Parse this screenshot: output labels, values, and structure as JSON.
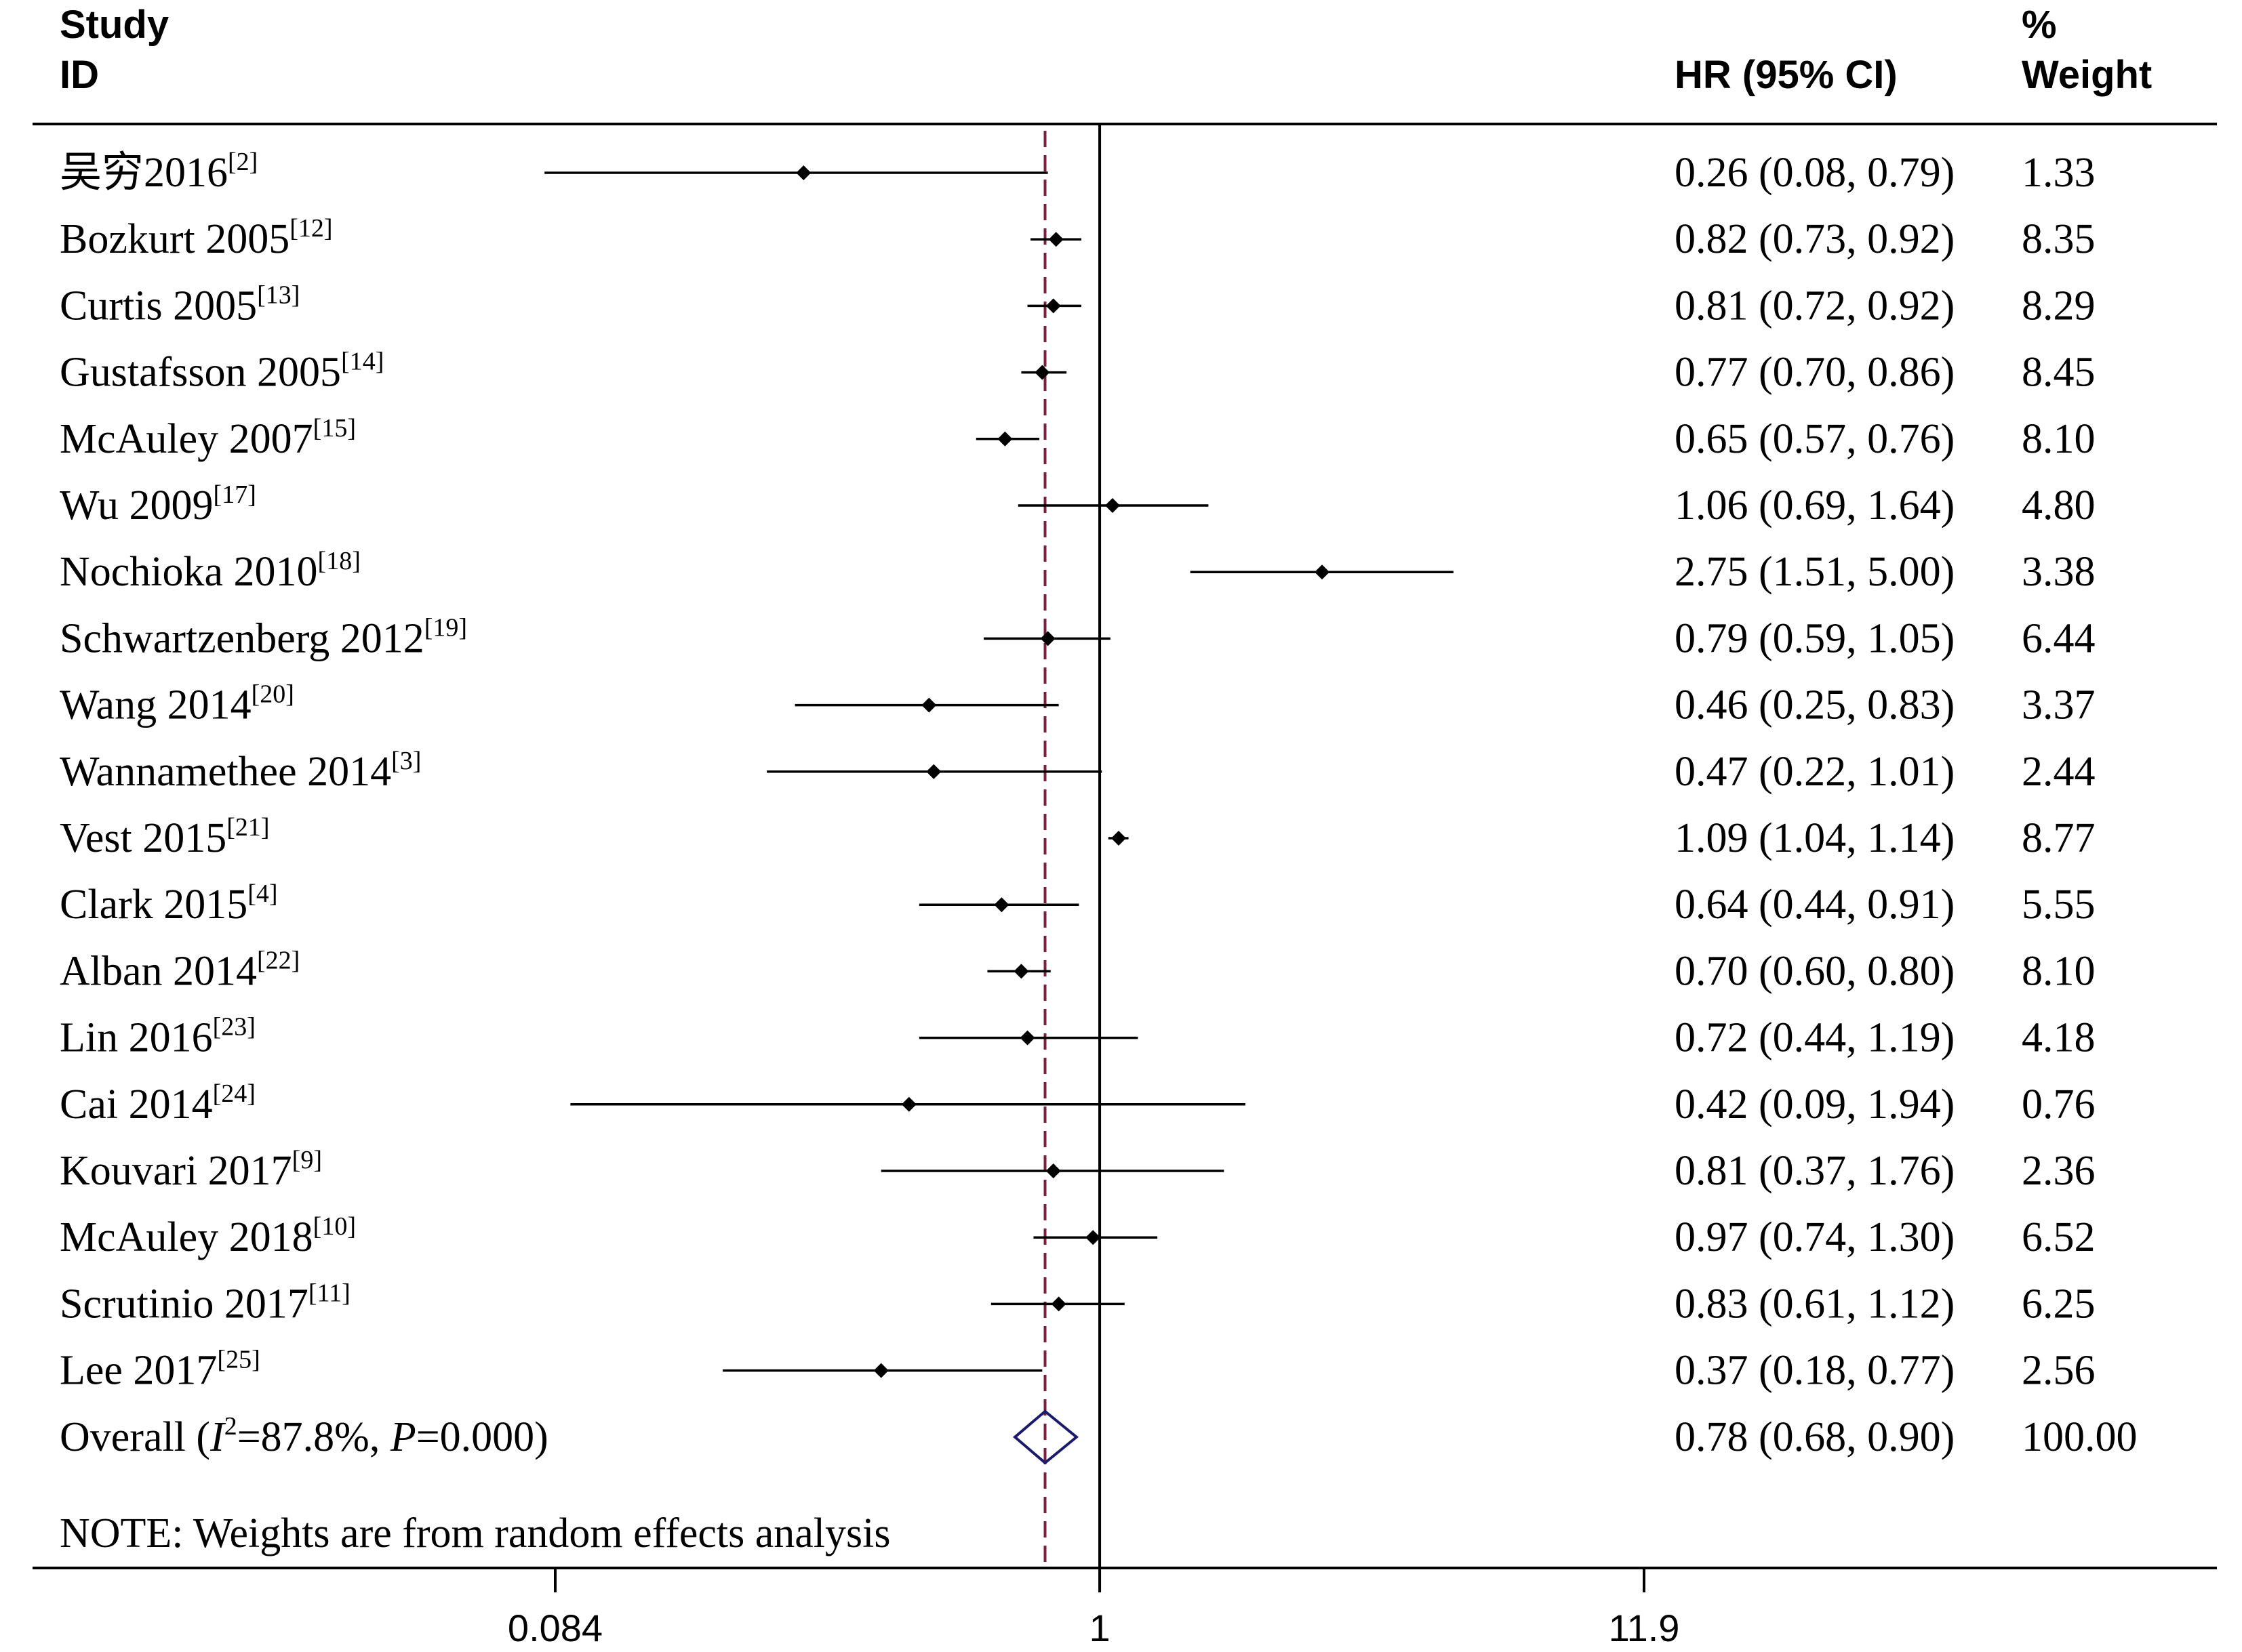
{
  "header": {
    "study_line1": "Study",
    "study_line2": "ID",
    "hr_label": "HR (95% CI)",
    "weight_line1": "%",
    "weight_line2": "Weight"
  },
  "note": "NOTE: Weights are from random effects analysis",
  "colors": {
    "line": "#000000",
    "dashed": "#7a1f3d",
    "diamond": "#1a1a6e"
  },
  "chart_data": {
    "type": "forest",
    "scale": "log",
    "x_ticks": [
      {
        "value": 0.084,
        "label": "0.084"
      },
      {
        "value": 1,
        "label": "1"
      },
      {
        "value": 11.9,
        "label": "11.9"
      }
    ],
    "xlim": [
      0.084,
      11.9
    ],
    "null_line": 1,
    "overall_line": 0.78,
    "studies": [
      {
        "name": "吴穷2016",
        "ref": "[2]",
        "hr": 0.26,
        "lo": 0.08,
        "hi": 0.79,
        "ci_text": "0.26 (0.08, 0.79)",
        "weight": "1.33"
      },
      {
        "name": "Bozkurt 2005",
        "ref": "[12]",
        "hr": 0.82,
        "lo": 0.73,
        "hi": 0.92,
        "ci_text": "0.82 (0.73, 0.92)",
        "weight": "8.35"
      },
      {
        "name": "Curtis 2005",
        "ref": "[13]",
        "hr": 0.81,
        "lo": 0.72,
        "hi": 0.92,
        "ci_text": "0.81 (0.72, 0.92)",
        "weight": "8.29"
      },
      {
        "name": "Gustafsson  2005",
        "ref": "[14]",
        "hr": 0.77,
        "lo": 0.7,
        "hi": 0.86,
        "ci_text": "0.77 (0.70, 0.86)",
        "weight": "8.45"
      },
      {
        "name": "McAuley 2007",
        "ref": "[15]",
        "hr": 0.65,
        "lo": 0.57,
        "hi": 0.76,
        "ci_text": "0.65 (0.57, 0.76)",
        "weight": "8.10"
      },
      {
        "name": "Wu 2009",
        "ref": "[17]",
        "hr": 1.06,
        "lo": 0.69,
        "hi": 1.64,
        "ci_text": "1.06 (0.69, 1.64)",
        "weight": "4.80"
      },
      {
        "name": "Nochioka 2010",
        "ref": "[18]",
        "hr": 2.75,
        "lo": 1.51,
        "hi": 5.0,
        "ci_text": "2.75 (1.51, 5.00)",
        "weight": "3.38"
      },
      {
        "name": "Schwartzenberg 2012",
        "ref": "[19]",
        "hr": 0.79,
        "lo": 0.59,
        "hi": 1.05,
        "ci_text": "0.79 (0.59, 1.05)",
        "weight": "6.44"
      },
      {
        "name": "Wang 2014",
        "ref": "[20]",
        "hr": 0.46,
        "lo": 0.25,
        "hi": 0.83,
        "ci_text": "0.46 (0.25, 0.83)",
        "weight": "3.37"
      },
      {
        "name": "Wannamethee 2014",
        "ref": "[3]",
        "hr": 0.47,
        "lo": 0.22,
        "hi": 1.01,
        "ci_text": "0.47 (0.22, 1.01)",
        "weight": "2.44"
      },
      {
        "name": "Vest 2015",
        "ref": "[21]",
        "hr": 1.09,
        "lo": 1.04,
        "hi": 1.14,
        "ci_text": "1.09 (1.04, 1.14)",
        "weight": "8.77"
      },
      {
        "name": "Clark 2015",
        "ref": "[4]",
        "hr": 0.64,
        "lo": 0.44,
        "hi": 0.91,
        "ci_text": "0.64 (0.44, 0.91)",
        "weight": "5.55"
      },
      {
        "name": "Alban 2014",
        "ref": "[22]",
        "hr": 0.7,
        "lo": 0.6,
        "hi": 0.8,
        "ci_text": "0.70 (0.60, 0.80)",
        "weight": "8.10"
      },
      {
        "name": "Lin 2016",
        "ref": "[23]",
        "hr": 0.72,
        "lo": 0.44,
        "hi": 1.19,
        "ci_text": "0.72 (0.44, 1.19)",
        "weight": "4.18"
      },
      {
        "name": "Cai 2014",
        "ref": "[24]",
        "hr": 0.42,
        "lo": 0.09,
        "hi": 1.94,
        "ci_text": "0.42 (0.09, 1.94)",
        "weight": "0.76"
      },
      {
        "name": "Kouvari 2017",
        "ref": "[9]",
        "hr": 0.81,
        "lo": 0.37,
        "hi": 1.76,
        "ci_text": "0.81 (0.37, 1.76)",
        "weight": "2.36"
      },
      {
        "name": "McAuley 2018",
        "ref": "[10]",
        "hr": 0.97,
        "lo": 0.74,
        "hi": 1.3,
        "ci_text": "0.97 (0.74, 1.30)",
        "weight": "6.52"
      },
      {
        "name": "Scrutinio 2017",
        "ref": "[11]",
        "hr": 0.83,
        "lo": 0.61,
        "hi": 1.12,
        "ci_text": "0.83 (0.61, 1.12)",
        "weight": "6.25"
      },
      {
        "name": "Lee 2017",
        "ref": "[25]",
        "hr": 0.37,
        "lo": 0.18,
        "hi": 0.77,
        "ci_text": "0.37 (0.18, 0.77)",
        "weight": "2.56"
      }
    ],
    "overall": {
      "label_prefix": "Overall  (",
      "i_symbol": "I",
      "i_sup": "2",
      "i_value": "=87.8%, ",
      "p_symbol": "P",
      "p_value": "=0.000)",
      "hr": 0.78,
      "lo": 0.68,
      "hi": 0.9,
      "ci_text": "0.78 (0.68, 0.90)",
      "weight": "100.00"
    }
  }
}
